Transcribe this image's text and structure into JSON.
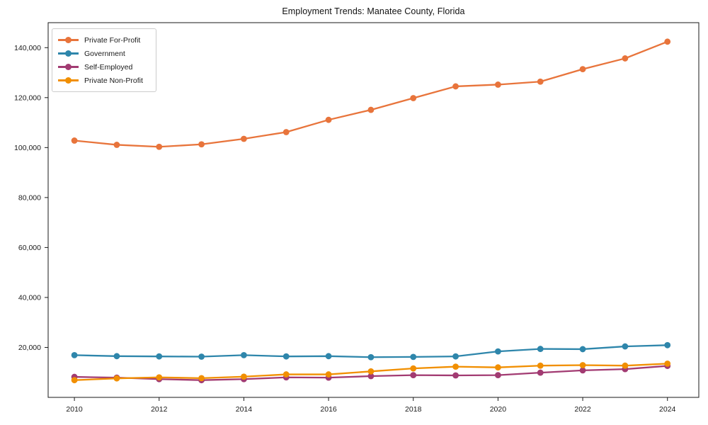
{
  "chart_data": {
    "type": "line",
    "title": "Employment Trends: Manatee County, Florida",
    "xlabel": "",
    "ylabel": "",
    "x": [
      2010,
      2011,
      2012,
      2013,
      2014,
      2015,
      2016,
      2017,
      2018,
      2019,
      2020,
      2021,
      2022,
      2023,
      2024
    ],
    "series": [
      {
        "name": "Private For-Profit",
        "color": "#E8743B",
        "values": [
          102800,
          101100,
          100300,
          101300,
          103500,
          106200,
          111100,
          115100,
          119800,
          124500,
          125200,
          126400,
          131400,
          135700,
          142400
        ]
      },
      {
        "name": "Government",
        "color": "#2E86AB",
        "values": [
          16900,
          16500,
          16400,
          16300,
          16900,
          16400,
          16500,
          16100,
          16200,
          16400,
          18400,
          19400,
          19300,
          20400,
          20900
        ]
      },
      {
        "name": "Self-Employed",
        "color": "#A23B72",
        "values": [
          8200,
          7900,
          7300,
          6900,
          7300,
          8000,
          7900,
          8500,
          8900,
          8800,
          8900,
          9900,
          10800,
          11300,
          12600
        ]
      },
      {
        "name": "Private Non-Profit",
        "color": "#F18F01",
        "values": [
          6900,
          7600,
          8000,
          7700,
          8300,
          9200,
          9200,
          10400,
          11600,
          12300,
          12000,
          12700,
          12900,
          12700,
          13500
        ]
      }
    ],
    "xticks": [
      2010,
      2012,
      2014,
      2016,
      2018,
      2020,
      2022,
      2024
    ],
    "xtick_labels": [
      "2010",
      "2012",
      "2014",
      "2016",
      "2018",
      "2020",
      "2022",
      "2024"
    ],
    "yticks": [
      20000,
      40000,
      60000,
      80000,
      100000,
      120000,
      140000
    ],
    "ytick_labels": [
      "20,000",
      "40,000",
      "60,000",
      "80,000",
      "100,000",
      "120,000",
      "140,000"
    ],
    "xlim": [
      2009.38,
      2024.74
    ],
    "ylim": [
      0,
      150000
    ],
    "grid": false,
    "legend_position": "upper left",
    "marker": "o"
  }
}
